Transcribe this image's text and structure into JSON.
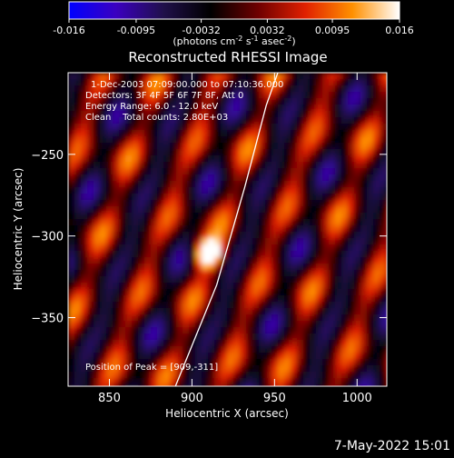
{
  "chart_data": {
    "type": "heatmap",
    "title": "Reconstructed RHESSI Image",
    "xlabel": "Heliocentric X (arcsec)",
    "ylabel": "Heliocentric Y (arcsec)",
    "xlim": [
      825,
      1018
    ],
    "ylim": [
      -392,
      -200
    ],
    "x_ticks": [
      850,
      900,
      950,
      1000
    ],
    "y_ticks": [
      -250,
      -300,
      -350
    ],
    "colorbar": {
      "range": [
        -0.016,
        0.016
      ],
      "ticks": [
        "-0.016",
        "-0.0095",
        "-0.0032",
        "0.0032",
        "0.0095",
        "0.016"
      ],
      "unit_label_parts": [
        "(photons cm",
        "-2",
        " s",
        "-1",
        " asec",
        "-2",
        ")"
      ],
      "colormap": [
        "#0000ff",
        "#3b00c0",
        "#20104a",
        "#000000",
        "#6e0000",
        "#e02000",
        "#ff9000",
        "#ffffff"
      ]
    },
    "annotations": [
      "1-Dec-2003 07:09:00.000 to 07:10:36.000",
      "Detectors: 3F 4F 5F 6F 7F 8F, Att 0",
      "Energy Range: 6.0 - 12.0 keV",
      "Clean    Total counts: 2.80E+03"
    ],
    "peak_label": "Position of Peak = [909,-311]",
    "peak_position": [
      909,
      -311
    ],
    "limb_curve": [
      [
        890,
        -392
      ],
      [
        915,
        -330
      ],
      [
        932,
        -270
      ],
      [
        945,
        -220
      ],
      [
        952,
        -200
      ]
    ]
  },
  "footer_timestamp": "7-May-2022 15:01"
}
